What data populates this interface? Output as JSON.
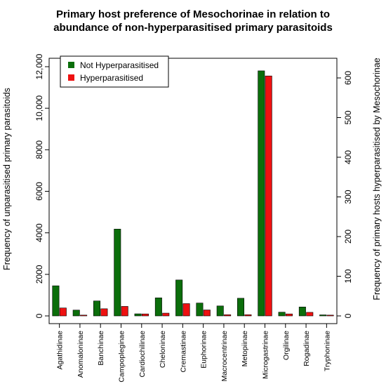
{
  "chart_data": {
    "type": "bar",
    "title_lines": [
      "Primary host preference of Mesochorinae in relation to",
      "abundance of non-hyperparasitised primary parasitoids"
    ],
    "categories": [
      "Agathidinae",
      "Anomaloninae",
      "Banchinae",
      "Campopleginae",
      "Cardiochilinae",
      "Cheloninae",
      "Cremastinae",
      "Euphorinae",
      "Macrocentrinae",
      "Metopiinae",
      "Microgastrinae",
      "Orgilinae",
      "Rogadinae",
      "Tryphoninae"
    ],
    "series": [
      {
        "name": "Not Hyperparasitised",
        "color": "#0b6e0b",
        "axis": "left",
        "values": [
          1450,
          280,
          720,
          4180,
          100,
          870,
          1730,
          620,
          480,
          850,
          11800,
          180,
          430,
          50
        ]
      },
      {
        "name": "Hyperparasitised",
        "color": "#ee1111",
        "axis": "right",
        "values": [
          20,
          2,
          18,
          24,
          5,
          7,
          31,
          15,
          3,
          3,
          605,
          5,
          9,
          2
        ]
      }
    ],
    "ylabel_left": "Frequency of unparasitised primary parasitoids",
    "ylabel_right": "Frequency of primary hosts hyperparasitised by Mesochorinae",
    "ylim_left": [
      0,
      12000
    ],
    "yticks_left": [
      "0",
      "2000",
      "4000",
      "6000",
      "8000",
      "10,000",
      "12,000"
    ],
    "ylim_right": [
      0,
      600
    ],
    "yticks_right": [
      "0",
      "100",
      "200",
      "300",
      "400",
      "500",
      "600"
    ],
    "legend_placement": "top-left",
    "grid": false
  }
}
